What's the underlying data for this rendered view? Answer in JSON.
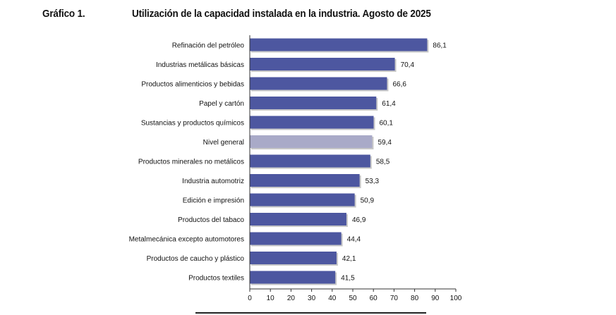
{
  "header": {
    "figure_label": "Gráfico 1.",
    "title": "Utilización de la capacidad instalada en la industria. Agosto de 2025"
  },
  "colors": {
    "bar": "#4d57a0",
    "highlight_bar": "#a9aac8",
    "axis": "#333333"
  },
  "chart_data": {
    "type": "bar",
    "orientation": "horizontal",
    "title": "Utilización de la capacidad instalada en la industria. Agosto de 2025",
    "categories": [
      "Refinación del petróleo",
      "Industrias metálicas básicas",
      "Productos alimenticios y bebidas",
      "Papel y cartón",
      "Sustancias y productos químicos",
      "Nivel general",
      "Productos minerales no metálicos",
      "Industria automotriz",
      "Edición e impresión",
      "Productos del tabaco",
      "Metalmecánica excepto automotores",
      "Productos de caucho y plástico",
      "Productos textiles"
    ],
    "values": [
      86.1,
      70.4,
      66.6,
      61.4,
      60.1,
      59.4,
      58.5,
      53.3,
      50.9,
      46.9,
      44.4,
      42.1,
      41.5
    ],
    "value_labels": [
      "86,1",
      "70,4",
      "66,6",
      "61,4",
      "60,1",
      "59,4",
      "58,5",
      "53,3",
      "50,9",
      "46,9",
      "44,4",
      "42,1",
      "41,5"
    ],
    "highlight_category": "Nivel general",
    "xlim": [
      0,
      100
    ],
    "xticks": [
      0,
      10,
      20,
      30,
      40,
      50,
      60,
      70,
      80,
      90,
      100
    ],
    "xlabel": "",
    "ylabel": "",
    "grid": false
  }
}
